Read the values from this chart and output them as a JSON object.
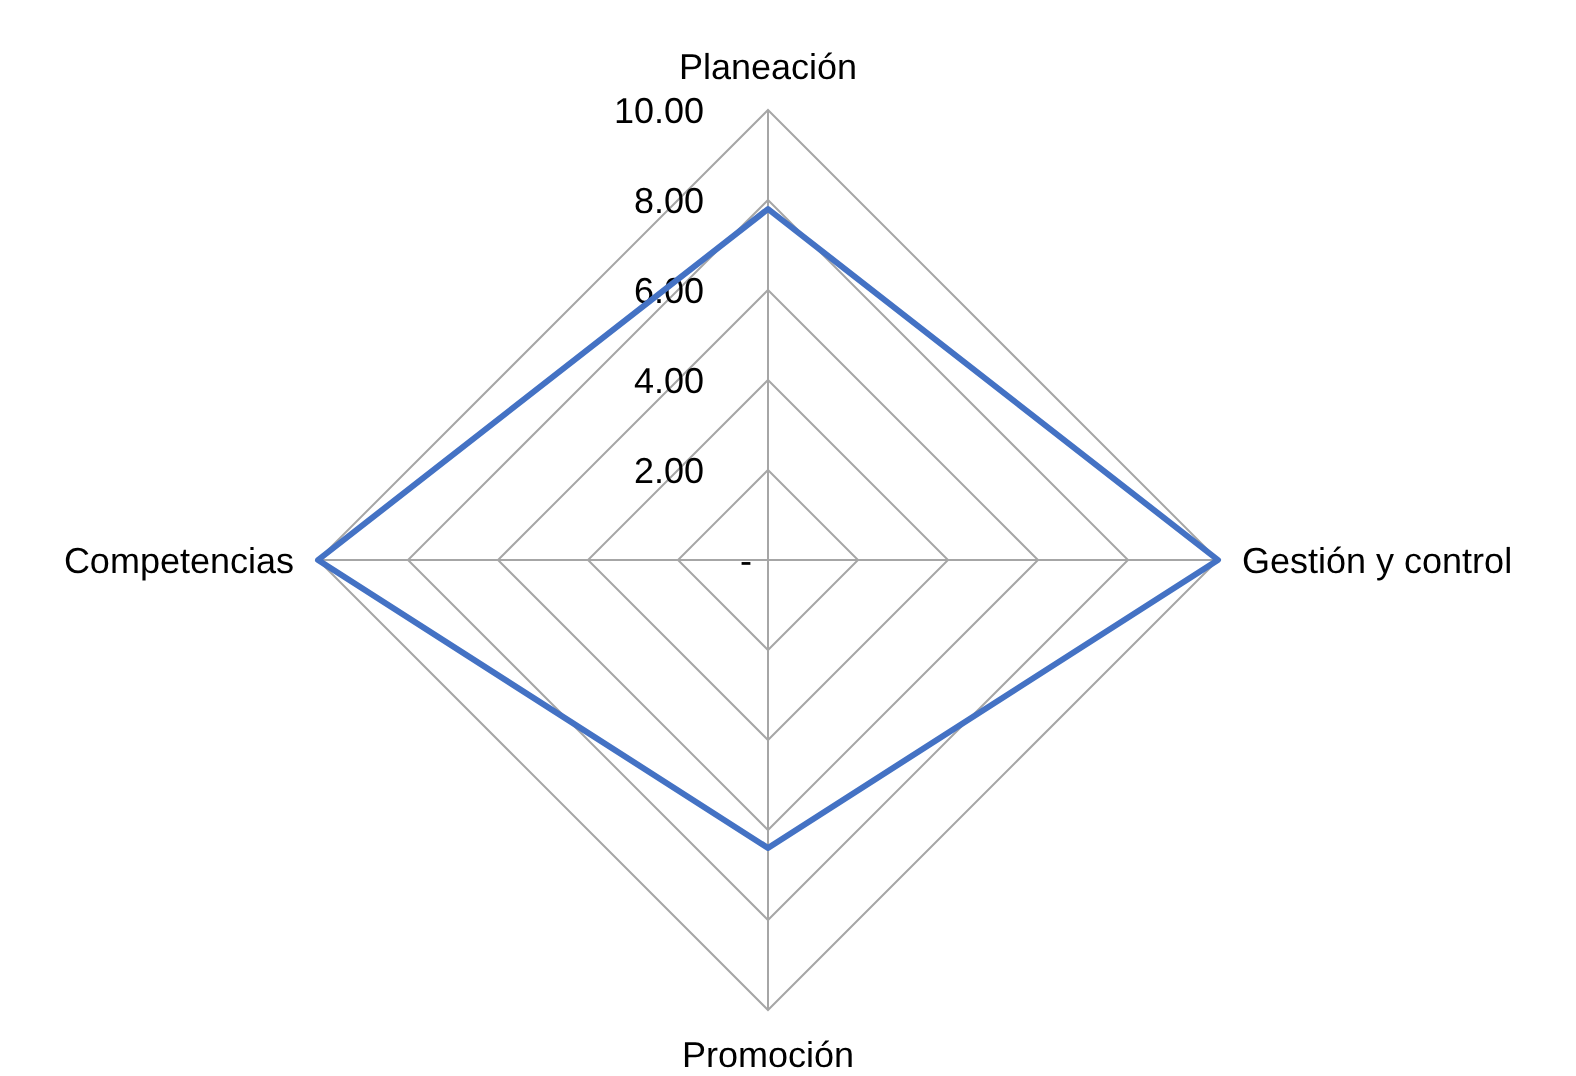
{
  "chart_data": {
    "type": "radar",
    "categories": [
      "Planeación",
      "Gestión y control",
      "Promoción",
      "Competencias"
    ],
    "series": [
      {
        "color": "#4472c4",
        "values": [
          7.8,
          10,
          6.4,
          10
        ]
      }
    ],
    "ylim": [
      0,
      10
    ],
    "yticks": [
      {
        "value": 0,
        "label": "-"
      },
      {
        "value": 2,
        "label": "2.00"
      },
      {
        "value": 4,
        "label": "4.00"
      },
      {
        "value": 6,
        "label": "6.00"
      },
      {
        "value": 8,
        "label": "8.00"
      },
      {
        "value": 10,
        "label": "10.00"
      }
    ],
    "grid": true,
    "marker": "none"
  }
}
